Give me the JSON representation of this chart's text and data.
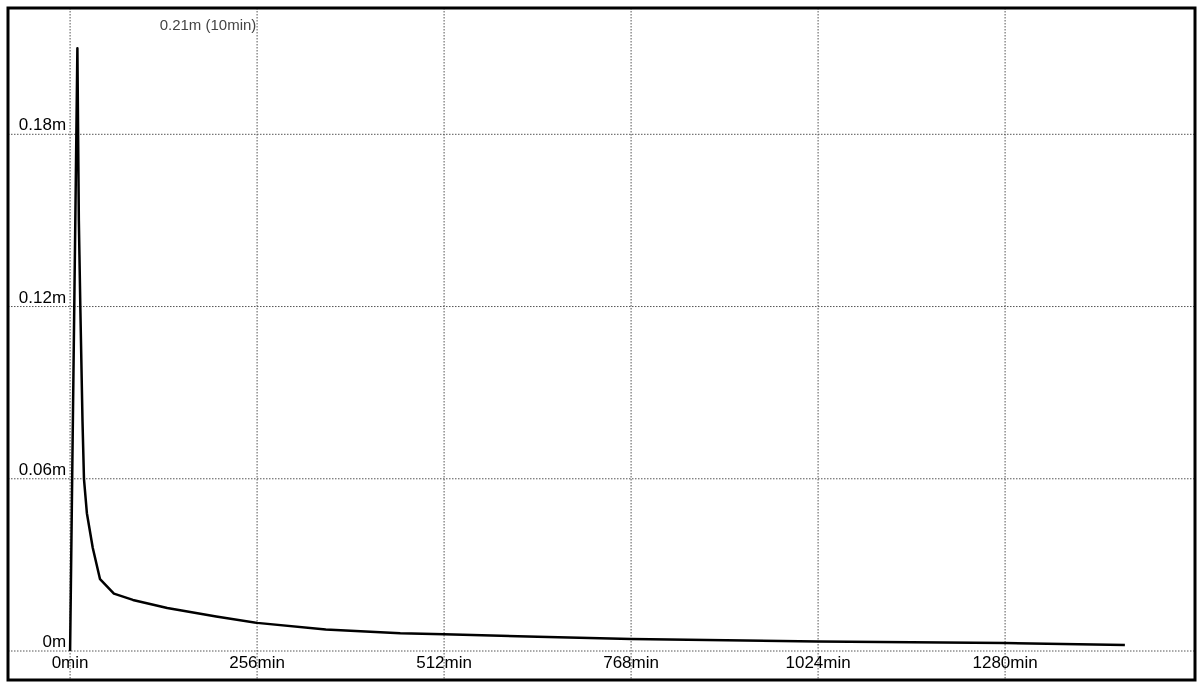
{
  "chart_data": {
    "type": "line",
    "x": [
      0,
      10,
      12,
      14,
      17,
      19,
      23,
      31,
      41,
      60,
      86,
      133,
      200,
      256,
      350,
      452,
      512,
      640,
      768,
      1024,
      1280,
      1444
    ],
    "series": [
      {
        "color": "#000000",
        "values": [
          0,
          0.21,
          0.15,
          0.12,
          0.08,
          0.06,
          0.048,
          0.036,
          0.025,
          0.02,
          0.0178,
          0.015,
          0.012,
          0.0098,
          0.0075,
          0.0062,
          0.0058,
          0.005,
          0.0042,
          0.0033,
          0.0028,
          0.0021
        ]
      }
    ],
    "xlim": [
      -85,
      1540
    ],
    "ylim": [
      -0.0101,
      0.224
    ],
    "xticks": [
      {
        "value": 0,
        "label": "0min"
      },
      {
        "value": 256,
        "label": "256min"
      },
      {
        "value": 512,
        "label": "512min"
      },
      {
        "value": 768,
        "label": "768min"
      },
      {
        "value": 1024,
        "label": "1024min"
      },
      {
        "value": 1280,
        "label": "1280min"
      }
    ],
    "yticks": [
      {
        "value": 0,
        "label": "0m"
      },
      {
        "value": 0.06,
        "label": "0.06m"
      },
      {
        "value": 0.12,
        "label": "0.12m"
      },
      {
        "value": 0.18,
        "label": "0.18m"
      }
    ],
    "grid": true,
    "line_style": "solid",
    "marker": "none",
    "annotations": [
      "0.21m (10min)"
    ]
  }
}
